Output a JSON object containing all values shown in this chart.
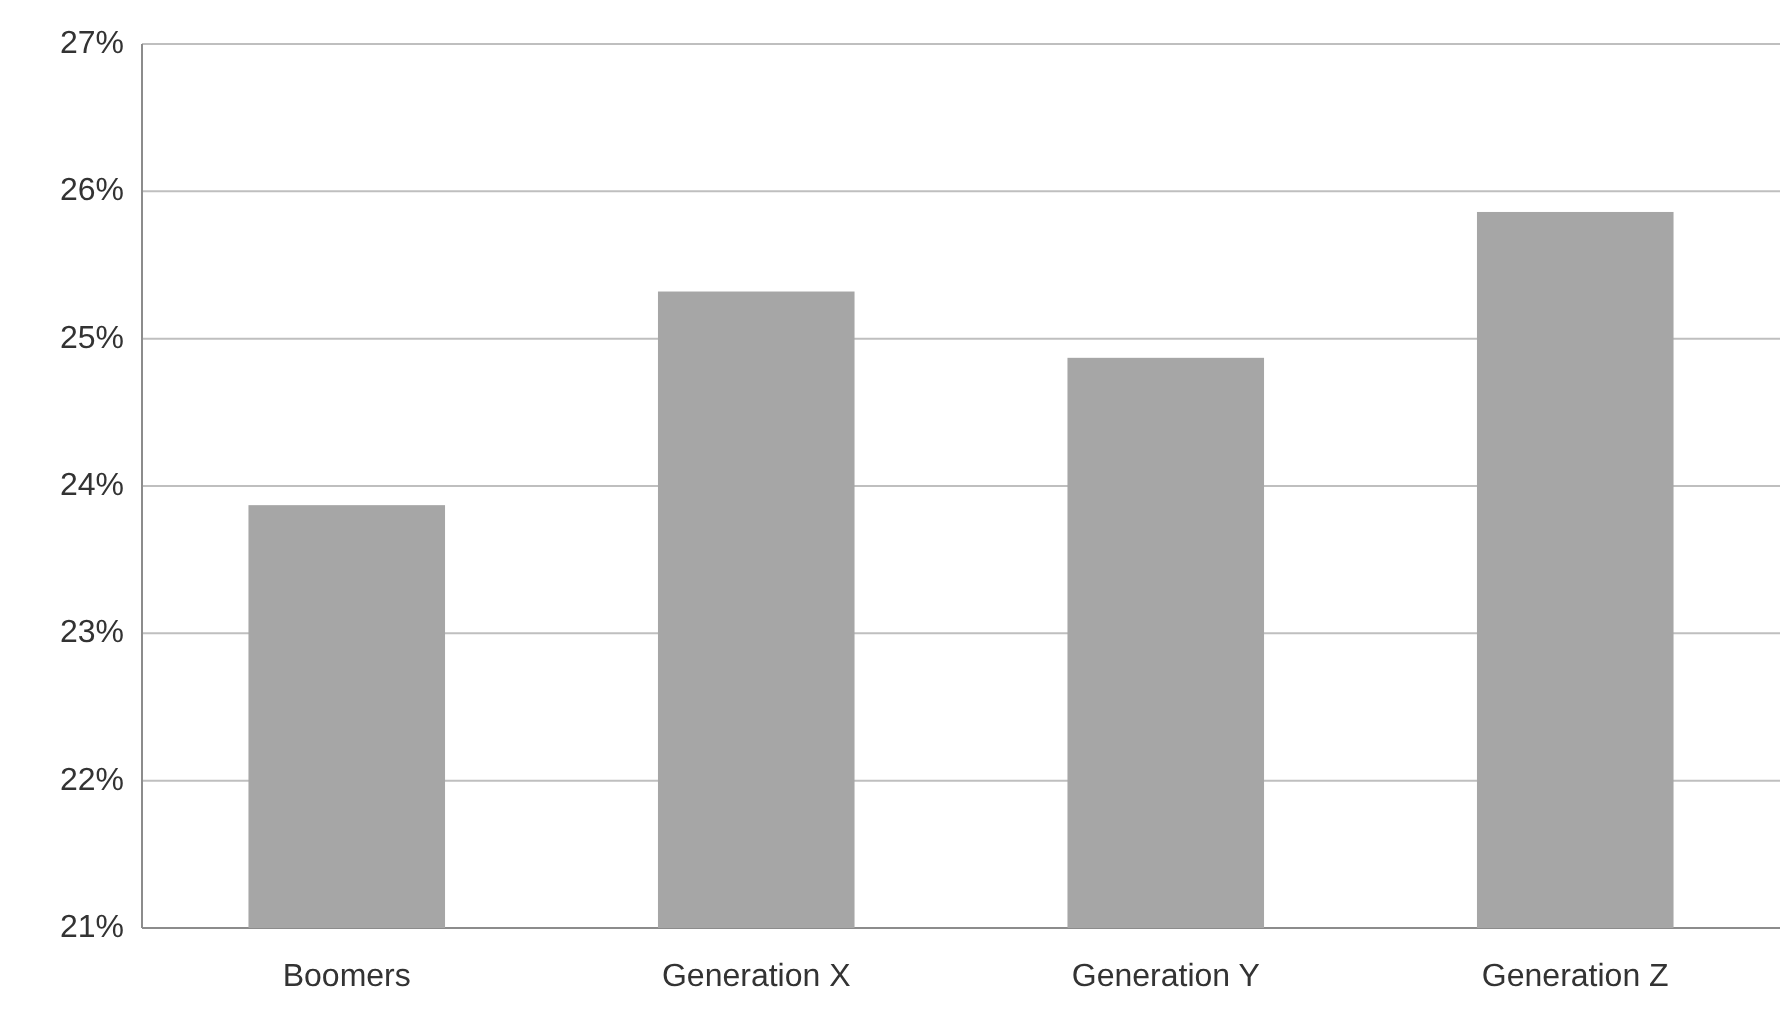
{
  "chart_data": {
    "type": "bar",
    "categories": [
      "Boomers",
      "Generation X",
      "Generation Y",
      "Generation Z"
    ],
    "values": [
      23.87,
      25.32,
      24.87,
      25.86
    ],
    "color": "#a6a6a6",
    "ylim": [
      21,
      27
    ],
    "yticks": [
      {
        "value": 21,
        "label": "21%"
      },
      {
        "value": 22,
        "label": "22%"
      },
      {
        "value": 23,
        "label": "23%"
      },
      {
        "value": 24,
        "label": "24%"
      },
      {
        "value": 25,
        "label": "25%"
      },
      {
        "value": 26,
        "label": "26%"
      },
      {
        "value": 27,
        "label": "27%"
      }
    ],
    "grid": "y"
  }
}
